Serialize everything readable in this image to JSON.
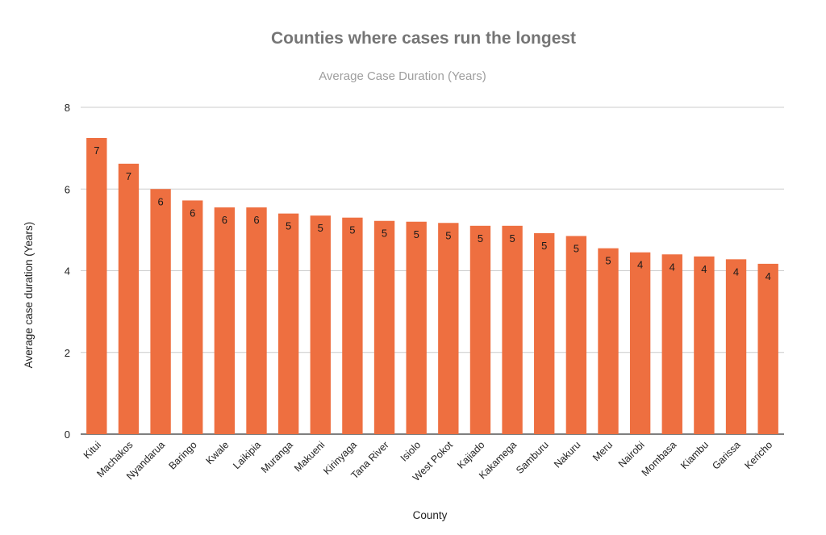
{
  "chart_data": {
    "type": "bar",
    "title": "Counties where cases run the longest",
    "subtitle": "Average Case Duration (Years)",
    "xlabel": "County",
    "ylabel": "Average case duration (Years)",
    "ylim": [
      0,
      8
    ],
    "yticks": [
      0,
      2,
      4,
      6,
      8
    ],
    "grid": true,
    "bar_color": "#EE6F40",
    "categories": [
      "Kitui",
      "Machakos",
      "Nyandarua",
      "Baringo",
      "Kwale",
      "Laikipia",
      "Muranga",
      "Makueni",
      "Kirinyaga",
      "Tana River",
      "Isiolo",
      "West Pokot",
      "Kajiado",
      "Kakamega",
      "Samburu",
      "Nakuru",
      "Meru",
      "Nairobi",
      "Mombasa",
      "Kiambu",
      "Garissa",
      "Kericho"
    ],
    "values": [
      7.25,
      6.62,
      6.0,
      5.72,
      5.55,
      5.55,
      5.4,
      5.35,
      5.3,
      5.22,
      5.2,
      5.17,
      5.1,
      5.1,
      4.92,
      4.85,
      4.55,
      4.45,
      4.4,
      4.35,
      4.28,
      4.17
    ],
    "data_labels": [
      "7",
      "7",
      "6",
      "6",
      "6",
      "6",
      "5",
      "5",
      "5",
      "5",
      "5",
      "5",
      "5",
      "5",
      "5",
      "5",
      "5",
      "4",
      "4",
      "4",
      "4",
      "4"
    ]
  }
}
